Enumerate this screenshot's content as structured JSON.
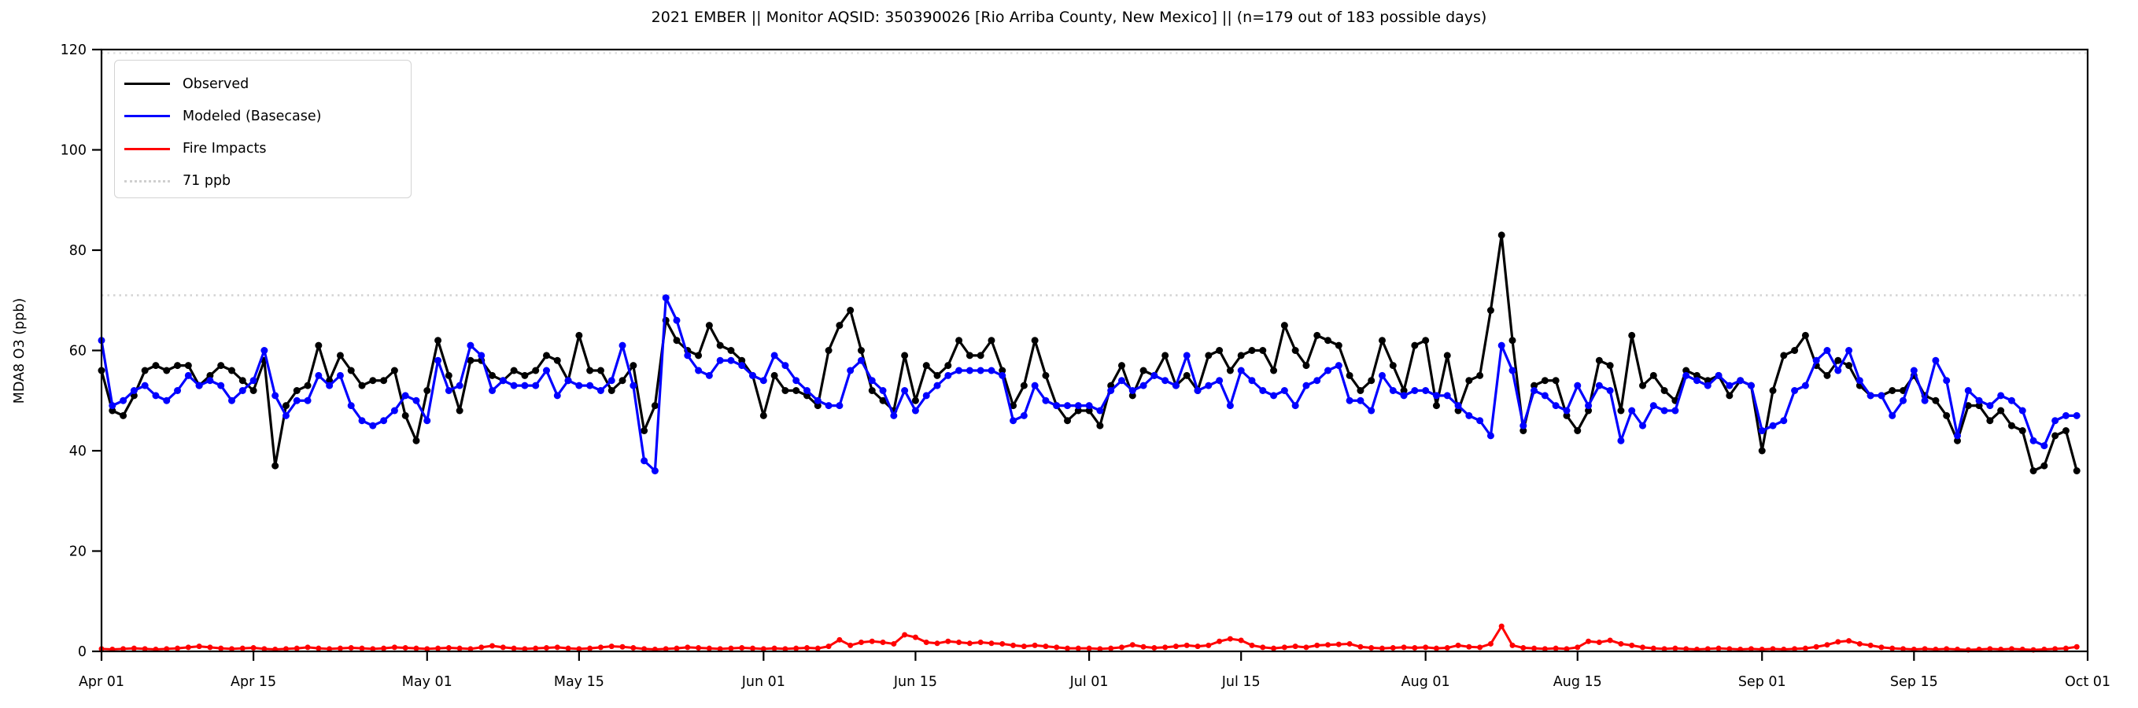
{
  "page": {
    "background": "#ffffff"
  },
  "chart_data": {
    "type": "line",
    "title": "2021 EMBER || Monitor AQSID: 350390026 [Rio Arriba County, New Mexico] || (n=179 out of 183 possible days)",
    "ylabel": "MDA8 O3 (ppb)",
    "xlabel": "",
    "ylim": [
      0,
      120
    ],
    "y_ticks": [
      0,
      20,
      40,
      60,
      80,
      100,
      120
    ],
    "x_tick_labels": [
      "Apr 01",
      "Apr 15",
      "May 01",
      "May 15",
      "Jun 01",
      "Jun 15",
      "Jul 01",
      "Jul 15",
      "Aug 01",
      "Aug 15",
      "Sep 01",
      "Sep 15",
      "Oct 01"
    ],
    "x_tick_days": [
      0,
      14,
      30,
      44,
      61,
      75,
      91,
      105,
      122,
      136,
      153,
      167,
      183
    ],
    "n_days": 183,
    "grid": false,
    "legend_position": "upper-left",
    "reference_lines": [
      {
        "value": 71,
        "label": "71 ppb",
        "color": "#d3d3d3",
        "style": "dotted"
      },
      {
        "value": 119.3,
        "label": "",
        "color": "#e2e2e2",
        "style": "dotted"
      }
    ],
    "series": [
      {
        "name": "Observed",
        "color": "#000000",
        "marker": "circle",
        "marker_radius": 4.5,
        "line_width": 3.2,
        "values": [
          56,
          48,
          47,
          51,
          56,
          57,
          56,
          57,
          57,
          53,
          55,
          57,
          56,
          54,
          52,
          58,
          37,
          49,
          52,
          53,
          61,
          54,
          59,
          56,
          53,
          54,
          54,
          56,
          47,
          42,
          52,
          62,
          55,
          48,
          58,
          58,
          55,
          54,
          56,
          55,
          56,
          59,
          58,
          54,
          63,
          56,
          56,
          52,
          54,
          57,
          44,
          49,
          66,
          62,
          60,
          59,
          65,
          61,
          60,
          58,
          55,
          47,
          55,
          52,
          52,
          51,
          49,
          60,
          65,
          68,
          60,
          52,
          50,
          48,
          59,
          50,
          57,
          55,
          57,
          62,
          59,
          59,
          62,
          56,
          49,
          53,
          62,
          55,
          49,
          46,
          48,
          48,
          45,
          53,
          57,
          51,
          56,
          55,
          59,
          53,
          55,
          52,
          59,
          60,
          56,
          59,
          60,
          60,
          56,
          65,
          60,
          57,
          63,
          62,
          61,
          55,
          52,
          54,
          62,
          57,
          52,
          61,
          62,
          49,
          59,
          48,
          54,
          55,
          68,
          83,
          62,
          44,
          53,
          54,
          54,
          47,
          44,
          48,
          58,
          57,
          48,
          63,
          53,
          55,
          52,
          50,
          56,
          55,
          54,
          55,
          51,
          54,
          53,
          40,
          52,
          59,
          60,
          63,
          57,
          55,
          58,
          57,
          53,
          51,
          51,
          52,
          52,
          55,
          51,
          50,
          47,
          42,
          49,
          49,
          46,
          48,
          45,
          44,
          36,
          37,
          43,
          44,
          36
        ]
      },
      {
        "name": "Modeled (Basecase)",
        "color": "#0000ff",
        "marker": "circle",
        "marker_radius": 4.5,
        "line_width": 3.2,
        "values": [
          62,
          49,
          50,
          52,
          53,
          51,
          50,
          52,
          55,
          53,
          54,
          53,
          50,
          52,
          54,
          60,
          51,
          47,
          50,
          50,
          55,
          53,
          55,
          49,
          46,
          45,
          46,
          48,
          51,
          50,
          46,
          58,
          52,
          53,
          61,
          59,
          52,
          54,
          53,
          53,
          53,
          56,
          51,
          54,
          53,
          53,
          52,
          54,
          61,
          53,
          38,
          36,
          70.5,
          66,
          59,
          56,
          55,
          58,
          58,
          57,
          55,
          54,
          59,
          57,
          54,
          52,
          50,
          49,
          49,
          56,
          58,
          54,
          52,
          47,
          52,
          48,
          51,
          53,
          55,
          56,
          56,
          56,
          56,
          55,
          46,
          47,
          53,
          50,
          49,
          49,
          49,
          49,
          48,
          52,
          54,
          52,
          53,
          55,
          54,
          53,
          59,
          52,
          53,
          54,
          49,
          56,
          54,
          52,
          51,
          52,
          49,
          53,
          54,
          56,
          57,
          50,
          50,
          48,
          55,
          52,
          51,
          52,
          52,
          51,
          51,
          49,
          47,
          46,
          43,
          61,
          56,
          45,
          52,
          51,
          49,
          48,
          53,
          49,
          53,
          52,
          42,
          48,
          45,
          49,
          48,
          48,
          55,
          54,
          53,
          55,
          53,
          54,
          53,
          44,
          45,
          46,
          52,
          53,
          58,
          60,
          56,
          60,
          54,
          51,
          51,
          47,
          50,
          56,
          50,
          58,
          54,
          43,
          52,
          50,
          49,
          51,
          50,
          48,
          42,
          41,
          46,
          47,
          47
        ]
      },
      {
        "name": "Fire Impacts",
        "color": "#ff0000",
        "marker": "circle",
        "marker_radius": 3.5,
        "line_width": 3,
        "values": [
          0.5,
          0.4,
          0.5,
          0.6,
          0.5,
          0.4,
          0.5,
          0.6,
          0.8,
          1.0,
          0.8,
          0.6,
          0.5,
          0.6,
          0.7,
          0.5,
          0.4,
          0.5,
          0.6,
          0.8,
          0.6,
          0.5,
          0.6,
          0.7,
          0.6,
          0.5,
          0.6,
          0.8,
          0.7,
          0.6,
          0.5,
          0.6,
          0.7,
          0.6,
          0.5,
          0.8,
          1.1,
          0.8,
          0.6,
          0.5,
          0.6,
          0.7,
          0.8,
          0.6,
          0.5,
          0.6,
          0.8,
          1.0,
          0.9,
          0.7,
          0.5,
          0.4,
          0.5,
          0.6,
          0.8,
          0.7,
          0.6,
          0.5,
          0.6,
          0.7,
          0.6,
          0.5,
          0.6,
          0.5,
          0.6,
          0.7,
          0.6,
          1.0,
          2.3,
          1.2,
          1.8,
          2.0,
          1.8,
          1.5,
          3.3,
          2.8,
          1.8,
          1.6,
          2.0,
          1.8,
          1.6,
          1.8,
          1.6,
          1.5,
          1.2,
          1.0,
          1.2,
          1.0,
          0.8,
          0.6,
          0.6,
          0.6,
          0.5,
          0.6,
          0.8,
          1.3,
          0.9,
          0.7,
          0.8,
          1.0,
          1.2,
          1.0,
          1.2,
          2.0,
          2.5,
          2.2,
          1.2,
          0.8,
          0.6,
          0.8,
          1.0,
          0.8,
          1.2,
          1.3,
          1.4,
          1.5,
          0.9,
          0.7,
          0.6,
          0.7,
          0.8,
          0.7,
          0.8,
          0.6,
          0.7,
          1.2,
          0.9,
          0.8,
          1.5,
          5.0,
          1.2,
          0.7,
          0.6,
          0.5,
          0.6,
          0.5,
          0.8,
          2.0,
          1.8,
          2.2,
          1.5,
          1.2,
          0.8,
          0.6,
          0.5,
          0.6,
          0.5,
          0.4,
          0.5,
          0.6,
          0.5,
          0.4,
          0.5,
          0.4,
          0.5,
          0.4,
          0.5,
          0.6,
          0.9,
          1.3,
          1.9,
          2.1,
          1.5,
          1.2,
          0.8,
          0.6,
          0.5,
          0.4,
          0.5,
          0.4,
          0.5,
          0.4,
          0.3,
          0.4,
          0.5,
          0.4,
          0.5,
          0.4,
          0.3,
          0.4,
          0.5,
          0.6,
          0.9
        ]
      }
    ]
  }
}
